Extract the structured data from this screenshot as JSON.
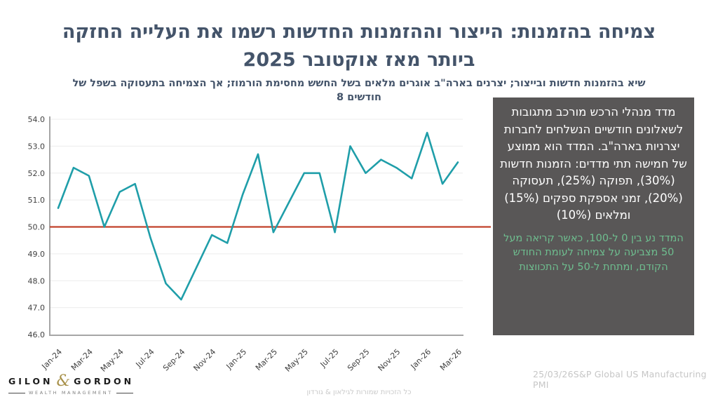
{
  "header": {
    "title_line1": "צמיחה בהזמנות: הייצור וההזמנות החדשות רשמו את העלייה החזקה",
    "title_line2": "ביותר מאז אוקטובר 2025",
    "subtitle_line1": "שיא בהזמנות חדשות ובייצור; יצרנים בארה\"ב אוגרים מלאים בשל החשש מחסימת הורמוז; אך הצמיחה בתעסוקה בשפל של",
    "subtitle_line2": "8 חודשים"
  },
  "info_box": {
    "main_text": "מדד מנהלי הרכש מורכב  מתגובות לשאלונים חודשיים הנשלחים לחברות יצרניות בארה\"ב. המדד הוא ממוצע של חמישה תתי מדדים: הזמנות חדשות (30%), תפוקה (25%), תעסוקה (20%), זמני אספקת ספקים (15%) ומלאים (10%)",
    "highlight_text": "המדד נע בין 0 ל-100, כאשר קריאה מעל 50 מצביעה על צמיחה לעומת החודש הקודם, ומתחת ל-50 על התכווצות"
  },
  "footer": {
    "logo": {
      "name_left": "GILON",
      "ampersand": "&",
      "name_right": "GORDON",
      "tagline": "WEALTH MANAGEMENT"
    },
    "copyright": "כל הזכויות שמורות לגילאון & גורדון",
    "source": "25/03/26S&P Global US Manufacturing PMI"
  },
  "chart_data": {
    "type": "line",
    "title": "",
    "xlabel": "",
    "ylabel": "",
    "x": [
      "Jan-24",
      "Feb-24",
      "Mar-24",
      "Apr-24",
      "May-24",
      "Jun-24",
      "Jul-24",
      "Aug-24",
      "Sep-24",
      "Oct-24",
      "Nov-24",
      "Dec-24",
      "Jan-25",
      "Feb-25",
      "Mar-25",
      "Apr-25",
      "May-25",
      "Jun-25",
      "Jul-25",
      "Aug-25",
      "Sep-25",
      "Oct-25",
      "Nov-25",
      "Dec-25",
      "Jan-26",
      "Feb-26",
      "Mar-26"
    ],
    "series": [
      {
        "name": "S&P Global US Manufacturing PMI",
        "values": [
          50.7,
          52.2,
          51.9,
          50.0,
          51.3,
          51.6,
          49.6,
          47.9,
          47.3,
          48.5,
          49.7,
          49.4,
          51.2,
          52.7,
          49.8,
          50.9,
          52.0,
          52.0,
          49.8,
          53.0,
          52.0,
          52.5,
          52.2,
          51.8,
          53.5,
          51.6,
          52.4
        ]
      }
    ],
    "ylim": [
      46.0,
      54.0
    ],
    "ytick_step": 1.0,
    "ytick_labels": [
      "46.0",
      "47.0",
      "48.0",
      "49.0",
      "50.0",
      "51.0",
      "52.0",
      "53.0",
      "54.0"
    ],
    "xtick_labels": [
      "Jan-24",
      "Mar-24",
      "May-24",
      "Jul-24",
      "Sep-24",
      "Nov-24",
      "Jan-25",
      "Mar-25",
      "May-25",
      "Jul-25",
      "Sep-25",
      "Nov-25",
      "Jan-26",
      "Mar-26"
    ],
    "xtick_every": 2,
    "reference_line": {
      "value": 50.0,
      "color": "#C2422B"
    },
    "line_color": "#1F9EA9",
    "grid": true,
    "grid_color": "#ECECEC",
    "axis_color": "#A6A6A6",
    "tick_text_color": "#3f3f3f",
    "legend": false
  },
  "colors": {
    "title": "#44546A",
    "info_box_bg": "#595757",
    "info_box_text": "#ffffff",
    "info_box_highlight": "#6EBE8F",
    "logo_gold": "#A8914A",
    "footer_gray": "#c6c6c6"
  }
}
